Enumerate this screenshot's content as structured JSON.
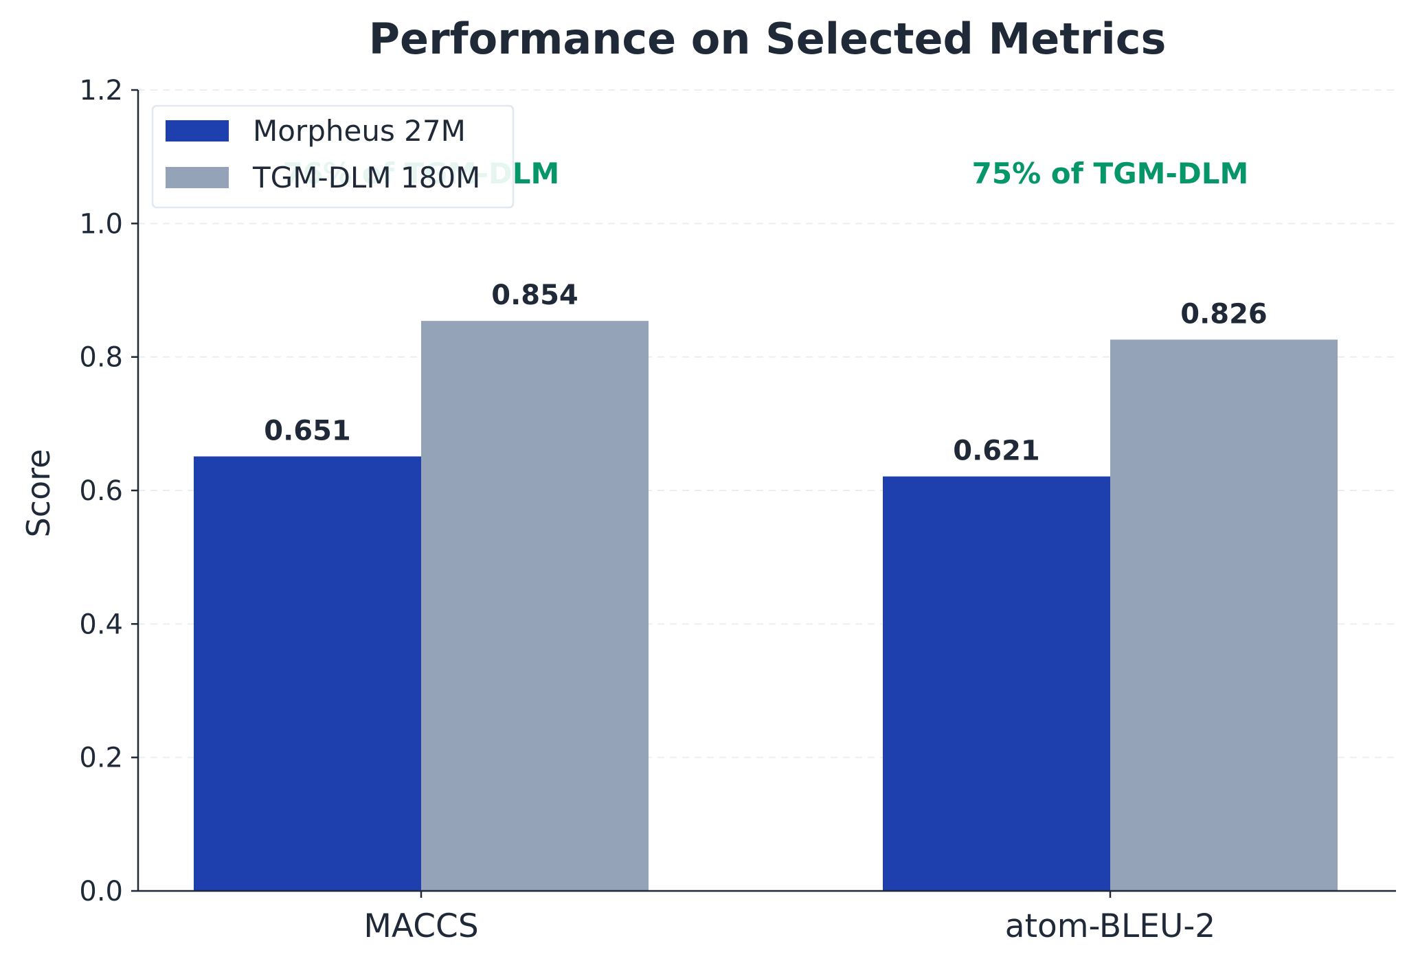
{
  "chart_data": {
    "type": "bar",
    "title": "Performance on Selected Metrics",
    "xlabel": "",
    "ylabel": "Score",
    "ylim": [
      0,
      1.2
    ],
    "yticks": [
      "0.0",
      "0.2",
      "0.4",
      "0.6",
      "0.8",
      "1.0",
      "1.2"
    ],
    "categories": [
      "MACCS",
      "atom-BLEU-2"
    ],
    "series": [
      {
        "name": "Morpheus 27M",
        "values": [
          0.651,
          0.621
        ],
        "labels": [
          "0.651",
          "0.621"
        ],
        "color": "#1e40af"
      },
      {
        "name": "TGM-DLM 180M",
        "values": [
          0.854,
          0.826
        ],
        "labels": [
          "0.854",
          "0.826"
        ],
        "color": "#94a3b8"
      }
    ],
    "annotations": [
      "76% of TGM-DLM",
      "75% of TGM-DLM"
    ],
    "annotation_color": "#059669",
    "grid": "horizontal dashed",
    "legend_position": "top-left"
  }
}
